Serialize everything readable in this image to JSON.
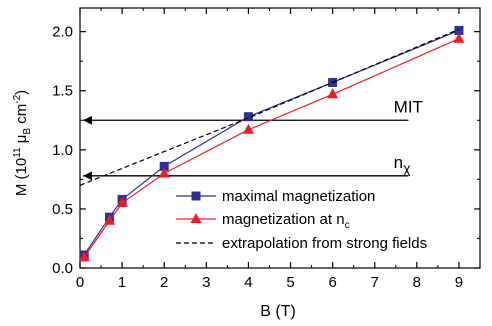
{
  "chart_data": {
    "type": "line",
    "xlabel": "B (T)",
    "ylabel": {
      "prefix": "M (10",
      "exp1": "11",
      "mid": " μ",
      "sub": "B",
      "mid2": " cm",
      "exp2": "-2",
      "suffix": ")"
    },
    "xlim": [
      0,
      9.5
    ],
    "ylim": [
      0,
      2.2
    ],
    "xticks": [
      0,
      1,
      2,
      3,
      4,
      5,
      6,
      7,
      8,
      9
    ],
    "yticks": [
      0.0,
      0.5,
      1.0,
      1.5,
      2.0
    ],
    "ytick_labels": [
      "0.0",
      "0.5",
      "1.0",
      "1.5",
      "2.0"
    ],
    "grid": false,
    "legend_position": "lower-right",
    "series": [
      {
        "name": "maximal magnetization",
        "marker": "square",
        "color": "#2e3192",
        "points": [
          [
            0.1,
            0.11
          ],
          [
            0.7,
            0.43
          ],
          [
            1.0,
            0.58
          ],
          [
            2.0,
            0.86
          ],
          [
            4.0,
            1.28
          ],
          [
            6.0,
            1.57
          ],
          [
            9.0,
            2.01
          ]
        ]
      },
      {
        "name": "magnetization at n",
        "name_sub": "c",
        "marker": "triangle",
        "color": "#ed1c24",
        "points": [
          [
            0.1,
            0.09
          ],
          [
            0.7,
            0.4
          ],
          [
            1.0,
            0.55
          ],
          [
            2.0,
            0.8
          ],
          [
            4.0,
            1.17
          ],
          [
            6.0,
            1.47
          ],
          [
            9.0,
            1.94
          ]
        ]
      },
      {
        "name": "extrapolation from strong fields",
        "style": "dashed",
        "color": "#000000",
        "points": [
          [
            0.0,
            0.7
          ],
          [
            4.0,
            1.27
          ],
          [
            9.0,
            2.02
          ]
        ]
      }
    ],
    "annotations": [
      {
        "label": "MIT",
        "y": 1.25,
        "x_from": 7.8,
        "x_to": 0.05
      },
      {
        "label": "n",
        "label_sub": "χ",
        "y": 0.78,
        "x_from": 7.8,
        "x_to": 0.05
      }
    ]
  }
}
